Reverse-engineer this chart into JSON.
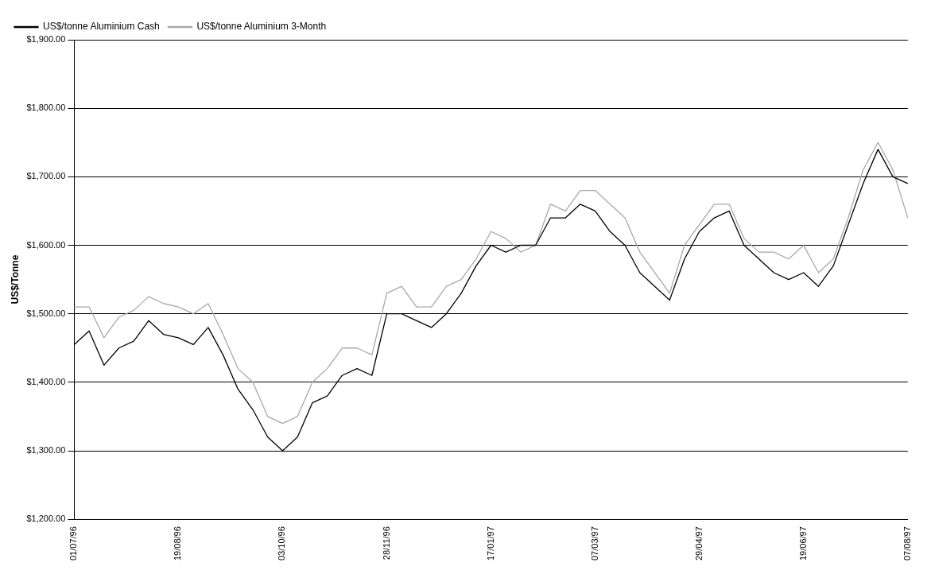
{
  "chart_data": {
    "type": "line",
    "categories": [
      "01/07/96",
      null,
      null,
      null,
      null,
      null,
      null,
      "19/08/96",
      null,
      null,
      null,
      null,
      null,
      null,
      "03/10/96",
      null,
      null,
      null,
      null,
      null,
      null,
      "28/11/96",
      null,
      null,
      null,
      null,
      null,
      null,
      "17/01/97",
      null,
      null,
      null,
      null,
      null,
      null,
      "07/03/97",
      null,
      null,
      null,
      null,
      null,
      null,
      "29/04/97",
      null,
      null,
      null,
      null,
      null,
      null,
      "19/06/97",
      null,
      null,
      null,
      null,
      null,
      null,
      "07/08/97"
    ],
    "series": [
      {
        "name": "US$/tonne Aluminium Cash",
        "color": "#000000",
        "values": [
          1455,
          1475,
          1425,
          1450,
          1460,
          1490,
          1470,
          1465,
          1455,
          1480,
          1440,
          1390,
          1360,
          1320,
          1300,
          1320,
          1370,
          1380,
          1410,
          1420,
          1410,
          1500,
          1500,
          1490,
          1480,
          1500,
          1530,
          1570,
          1600,
          1590,
          1600,
          1600,
          1640,
          1640,
          1660,
          1650,
          1620,
          1600,
          1560,
          1540,
          1520,
          1580,
          1620,
          1640,
          1650,
          1600,
          1580,
          1560,
          1550,
          1560,
          1540,
          1570,
          1630,
          1690,
          1740,
          1700,
          1690
        ]
      },
      {
        "name": "US$/tonne Aluminium 3-Month",
        "color": "#a8a8a8",
        "values": [
          1510,
          1510,
          1465,
          1495,
          1505,
          1525,
          1515,
          1510,
          1500,
          1515,
          1470,
          1420,
          1400,
          1350,
          1340,
          1350,
          1400,
          1420,
          1450,
          1450,
          1440,
          1530,
          1540,
          1510,
          1510,
          1540,
          1550,
          1580,
          1620,
          1610,
          1590,
          1600,
          1660,
          1650,
          1680,
          1680,
          1660,
          1640,
          1590,
          1560,
          1530,
          1600,
          1630,
          1660,
          1660,
          1610,
          1590,
          1590,
          1580,
          1600,
          1560,
          1580,
          1640,
          1710,
          1750,
          1710,
          1640
        ]
      }
    ],
    "ylabel": "US$/Tonne",
    "ylim": [
      1200,
      1900
    ],
    "yticks": [
      {
        "value": 1200,
        "label": "$1,200.00"
      },
      {
        "value": 1300,
        "label": "$1,300.00"
      },
      {
        "value": 1400,
        "label": "$1,400.00"
      },
      {
        "value": 1500,
        "label": "$1,500.00"
      },
      {
        "value": 1600,
        "label": "$1,600.00"
      },
      {
        "value": 1700,
        "label": "$1,700.00"
      },
      {
        "value": 1800,
        "label": "$1,800.00"
      },
      {
        "value": 1900,
        "label": "$1,900.00"
      }
    ],
    "grid": true,
    "legend": "top left",
    "marker": "none",
    "line_style": "solid"
  }
}
